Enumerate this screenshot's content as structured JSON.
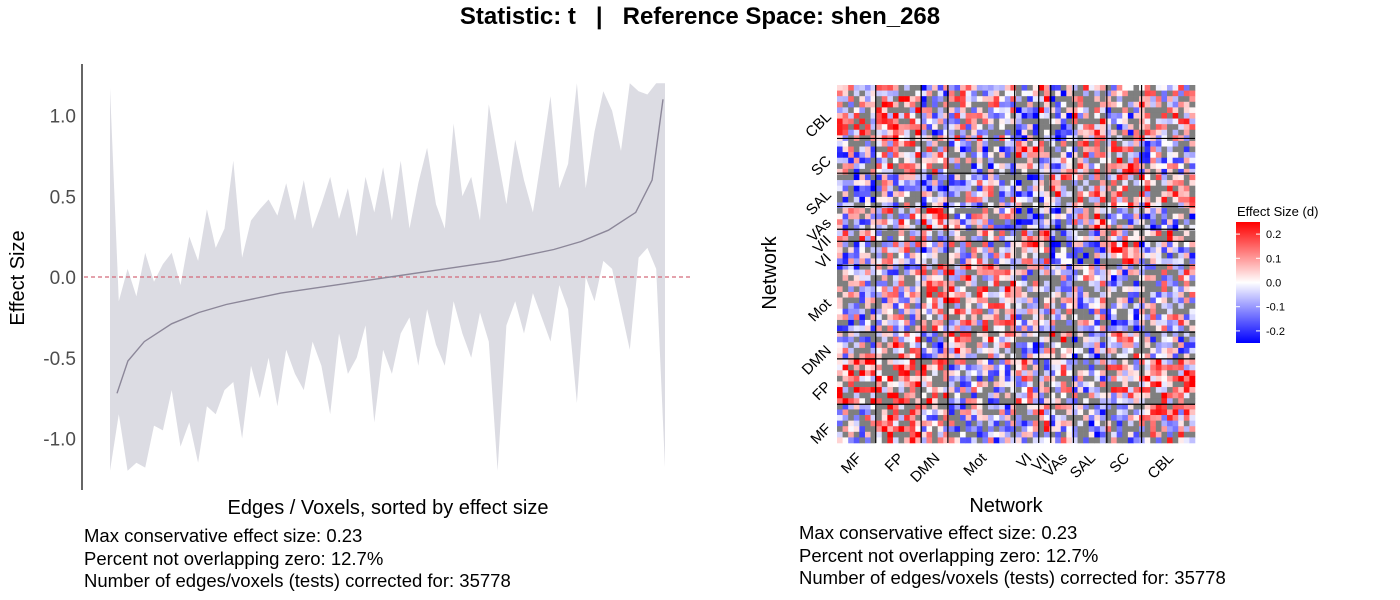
{
  "title": "Statistic: t   |   Reference Space: shen_268",
  "chart_data": [
    {
      "type": "area",
      "xlabel": "Edges / Voxels, sorted by effect size",
      "ylabel": "Effect Size",
      "ylim": [
        -1.28,
        1.28
      ],
      "yticks": [
        "1.0",
        "0.5",
        "0.0",
        "-0.5",
        "-1.0"
      ],
      "ytick_values": [
        1.0,
        0.5,
        0.0,
        -0.5,
        -1.0
      ],
      "reference_line": 0,
      "grid": false,
      "series": [
        {
          "role": "estimate",
          "color": "#8c8799",
          "x": [
            0,
            0.02,
            0.05,
            0.1,
            0.15,
            0.2,
            0.3,
            0.4,
            0.5,
            0.6,
            0.7,
            0.8,
            0.85,
            0.9,
            0.95,
            0.98,
            1.0
          ],
          "values": [
            -0.72,
            -0.52,
            -0.4,
            -0.29,
            -0.22,
            -0.17,
            -0.1,
            -0.05,
            0.0,
            0.05,
            0.1,
            0.17,
            0.22,
            0.29,
            0.4,
            0.6,
            1.1
          ]
        },
        {
          "role": "interval-upper",
          "color": "#dcdce3",
          "values": [
            1.17,
            -0.15,
            0.05,
            -0.12,
            0.15,
            -0.03,
            0.08,
            0.15,
            -0.05,
            0.25,
            0.1,
            0.42,
            0.18,
            0.3,
            0.72,
            0.12,
            0.35,
            0.42,
            0.48,
            0.38,
            0.58,
            0.35,
            0.6,
            0.3,
            0.45,
            0.62,
            0.36,
            0.55,
            0.25,
            0.62,
            0.4,
            0.68,
            0.35,
            0.72,
            0.3,
            0.58,
            0.8,
            0.45,
            0.3,
            0.95,
            0.5,
            0.62,
            0.35,
            1.07,
            0.75,
            0.45,
            0.85,
            0.6,
            0.4,
            0.75,
            1.12,
            0.55,
            0.7,
            1.2,
            0.55,
            0.9,
            1.15,
            1.03,
            0.78,
            1.2,
            1.15,
            1.13,
            1.2,
            1.2
          ],
          "lower": [
            -1.2,
            -0.85,
            -1.2,
            -1.15,
            -1.18,
            -0.92,
            -0.95,
            -0.7,
            -1.05,
            -0.9,
            -1.15,
            -0.8,
            -0.85,
            -0.7,
            -0.65,
            -1.0,
            -0.55,
            -0.75,
            -0.5,
            -0.8,
            -0.45,
            -0.6,
            -0.7,
            -0.4,
            -0.55,
            -0.85,
            -0.35,
            -0.6,
            -0.5,
            -0.3,
            -0.9,
            -0.45,
            -0.6,
            -0.35,
            -0.25,
            -0.55,
            -0.2,
            -0.42,
            -0.55,
            -0.15,
            -0.35,
            -0.5,
            -0.22,
            -0.4,
            -1.2,
            -0.3,
            -0.15,
            -0.35,
            -0.1,
            -0.25,
            -0.4,
            -0.05,
            -0.2,
            -0.78,
            0.0,
            -0.15,
            0.1,
            0.05,
            -0.2,
            -0.45,
            0.12,
            0.18,
            0.05,
            -1.18
          ]
        }
      ]
    },
    {
      "type": "heatmap",
      "xlabel": "Network",
      "ylabel": "Network",
      "networks": [
        "MF",
        "FP",
        "DMN",
        "Mot",
        "VI",
        "VII",
        "VAs",
        "SAL",
        "SC",
        "CBL"
      ],
      "network_sizes": [
        29,
        34,
        20,
        50,
        18,
        9,
        17,
        25,
        26,
        40
      ],
      "legend": {
        "title": "Effect Size (d)",
        "placement": "right",
        "ticks": [
          "0.2",
          "0.1",
          "0.0",
          "-0.1",
          "-0.2"
        ],
        "tick_values": [
          0.2,
          0.1,
          0.0,
          -0.1,
          -0.2
        ],
        "range": [
          -0.25,
          0.25
        ],
        "colors": {
          "low": "#0000ff",
          "mid": "#ffffff",
          "high": "#ff0000",
          "masked": "#7f7f7f"
        }
      }
    }
  ],
  "captions": {
    "left": [
      "Max conservative effect size: 0.23",
      "Percent not overlapping zero: 12.7%",
      "Number of edges/voxels (tests) corrected for: 35778"
    ],
    "right": [
      "Max conservative effect size: 0.23",
      "Percent not overlapping zero: 12.7%",
      "Number of edges/voxels (tests) corrected for: 35778"
    ]
  }
}
